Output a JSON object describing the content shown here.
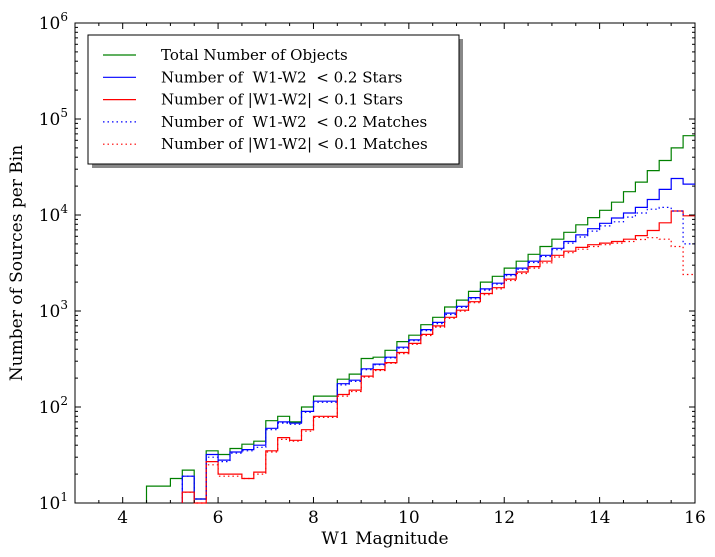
{
  "chart_data": {
    "type": "line",
    "xlabel": "W1 Magnitude",
    "ylabel": "Number of Sources per Bin",
    "xlim": [
      3,
      16
    ],
    "ylim": [
      10,
      1000000
    ],
    "yscale": "log",
    "grid": false,
    "legend_position": "top-left",
    "x_ticks": [
      4,
      6,
      8,
      10,
      12,
      14,
      16
    ],
    "y_ticks": [
      {
        "value": 10,
        "base": "10",
        "exp": "1"
      },
      {
        "value": 100,
        "base": "10",
        "exp": "2"
      },
      {
        "value": 1000,
        "base": "10",
        "exp": "3"
      },
      {
        "value": 10000,
        "base": "10",
        "exp": "4"
      },
      {
        "value": 100000,
        "base": "10",
        "exp": "5"
      },
      {
        "value": 1000000,
        "base": "10",
        "exp": "6"
      }
    ],
    "bin_width": 0.25,
    "series": [
      {
        "name": "Total Number of Objects",
        "color": "#008000",
        "style": "solid",
        "bin_start": [
          4.5,
          5.0,
          5.25,
          5.5,
          5.75,
          6.0,
          6.25,
          6.5,
          6.75,
          7.0,
          7.25,
          7.5,
          7.75,
          8.0,
          8.25,
          8.5,
          8.75,
          9.0,
          9.25,
          9.5,
          9.75,
          10.0,
          10.25,
          10.5,
          10.75,
          11.0,
          11.25,
          11.5,
          11.75,
          12.0,
          12.25,
          12.5,
          12.75,
          13.0,
          13.25,
          13.5,
          13.75,
          14.0,
          14.25,
          14.5,
          14.75,
          15.0,
          15.25,
          15.5,
          15.75
        ],
        "values": [
          15,
          18,
          22,
          11,
          35,
          32,
          37,
          41,
          44,
          72,
          80,
          70,
          100,
          130,
          130,
          195,
          220,
          320,
          330,
          390,
          480,
          560,
          720,
          860,
          1100,
          1300,
          1600,
          2000,
          2300,
          2800,
          3300,
          3900,
          4700,
          5600,
          6600,
          7900,
          9400,
          11200,
          13600,
          17500,
          22000,
          29000,
          37000,
          50000,
          67000
        ]
      },
      {
        "name": "Number of  W1-W2  < 0.2 Stars",
        "color": "#0000ff",
        "style": "solid",
        "bin_start": [
          5.25,
          5.5,
          5.75,
          6.0,
          6.25,
          6.5,
          6.75,
          7.0,
          7.25,
          7.5,
          7.75,
          8.0,
          8.25,
          8.5,
          8.75,
          9.0,
          9.25,
          9.5,
          9.75,
          10.0,
          10.25,
          10.5,
          10.75,
          11.0,
          11.25,
          11.5,
          11.75,
          12.0,
          12.25,
          12.5,
          12.75,
          13.0,
          13.25,
          13.5,
          13.75,
          14.0,
          14.25,
          14.5,
          14.75,
          15.0,
          15.25,
          15.5,
          15.75
        ],
        "values": [
          19,
          11,
          32,
          28,
          34,
          36,
          40,
          60,
          70,
          68,
          90,
          115,
          115,
          175,
          190,
          250,
          280,
          330,
          420,
          500,
          640,
          760,
          950,
          1120,
          1380,
          1700,
          1950,
          2400,
          2800,
          3300,
          3800,
          4500,
          5300,
          6200,
          7200,
          8200,
          9300,
          10500,
          12000,
          14500,
          18500,
          24000,
          21000
        ]
      },
      {
        "name": "Number of |W1-W2| < 0.1 Stars",
        "color": "#ff0000",
        "style": "solid",
        "bin_start": [
          5.25,
          5.5,
          5.75,
          6.0,
          6.25,
          6.5,
          6.75,
          7.0,
          7.25,
          7.5,
          7.75,
          8.0,
          8.25,
          8.5,
          8.75,
          9.0,
          9.25,
          9.5,
          9.75,
          10.0,
          10.25,
          10.5,
          10.75,
          11.0,
          11.25,
          11.5,
          11.75,
          12.0,
          12.25,
          12.5,
          12.75,
          13.0,
          13.25,
          13.5,
          13.75,
          14.0,
          14.25,
          14.5,
          14.75,
          15.0,
          15.25,
          15.5,
          15.75
        ],
        "values": [
          13,
          10,
          27,
          20,
          20,
          18,
          21,
          35,
          48,
          45,
          58,
          80,
          80,
          135,
          150,
          210,
          245,
          290,
          370,
          460,
          570,
          700,
          860,
          1020,
          1250,
          1520,
          1750,
          2150,
          2550,
          2900,
          3300,
          3800,
          4200,
          4600,
          4900,
          5100,
          5300,
          5600,
          6100,
          6900,
          8300,
          11000,
          9800
        ]
      },
      {
        "name": "Number of  W1-W2  < 0.2 Matches",
        "color": "#0000ff",
        "style": "dotted",
        "bin_start": [
          5.25,
          5.5,
          5.75,
          6.0,
          6.25,
          6.5,
          6.75,
          7.0,
          7.25,
          7.5,
          7.75,
          8.0,
          8.25,
          8.5,
          8.75,
          9.0,
          9.25,
          9.5,
          9.75,
          10.0,
          10.25,
          10.5,
          10.75,
          11.0,
          11.25,
          11.5,
          11.75,
          12.0,
          12.25,
          12.5,
          12.75,
          13.0,
          13.25,
          13.5,
          13.75,
          14.0,
          14.25,
          14.5,
          14.75,
          15.0,
          15.25,
          15.5,
          15.75,
          15.85
        ],
        "values": [
          19,
          11,
          30,
          27,
          33,
          35,
          38,
          58,
          68,
          66,
          88,
          112,
          112,
          170,
          185,
          245,
          275,
          325,
          410,
          490,
          625,
          740,
          920,
          1090,
          1340,
          1650,
          1900,
          2330,
          2720,
          3200,
          3700,
          4350,
          5100,
          5900,
          6800,
          7700,
          8500,
          9500,
          10500,
          11500,
          12000,
          11000,
          5000,
          5000
        ]
      },
      {
        "name": "Number of |W1-W2| < 0.1 Matches",
        "color": "#ff0000",
        "style": "dotted",
        "bin_start": [
          5.25,
          5.5,
          5.75,
          6.0,
          6.25,
          6.5,
          6.75,
          7.0,
          7.25,
          7.5,
          7.75,
          8.0,
          8.25,
          8.5,
          8.75,
          9.0,
          9.25,
          9.5,
          9.75,
          10.0,
          10.25,
          10.5,
          10.75,
          11.0,
          11.25,
          11.5,
          11.75,
          12.0,
          12.25,
          12.5,
          12.75,
          13.0,
          13.25,
          13.5,
          13.75,
          14.0,
          14.25,
          14.5,
          14.75,
          15.0,
          15.25,
          15.5,
          15.75,
          15.85
        ],
        "values": [
          13,
          10,
          25,
          19,
          19,
          18,
          20,
          34,
          46,
          44,
          56,
          78,
          78,
          130,
          145,
          205,
          240,
          285,
          360,
          450,
          555,
          680,
          840,
          995,
          1220,
          1480,
          1700,
          2080,
          2460,
          2800,
          3180,
          3650,
          4050,
          4400,
          4700,
          4900,
          5100,
          5300,
          5550,
          5800,
          5600,
          4700,
          2400,
          2400
        ]
      }
    ]
  }
}
